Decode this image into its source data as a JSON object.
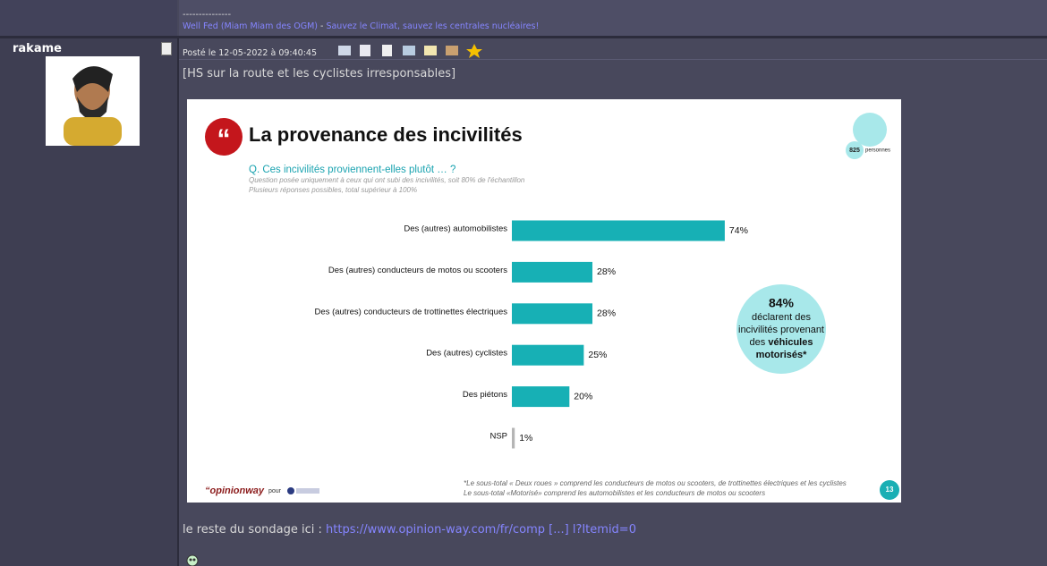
{
  "signature": {
    "separator": "---------------",
    "link1": "Well Fed (Miam Miam des OGM)",
    "dash": " - ",
    "link2": "Sauvez le Climat, sauvez les centrales nucléaires!"
  },
  "post": {
    "author": "rakame",
    "date": "Posté le 12-05-2022 à 09:40:45",
    "subject": "[HS sur la route et les cyclistes irresponsables]",
    "footer_text": "le reste du sondage ici : ",
    "footer_link": "https://www.opinion-way.com/fr/comp [...] l?Itemid=0"
  },
  "chart_data": {
    "type": "bar",
    "orientation": "horizontal",
    "title": "La provenance des incivilités",
    "subtitle": "Q. Ces incivilités proviennent-elles plutôt … ?",
    "notes": [
      "Question posée uniquement à ceux qui ont subi des incivilités, soit 80% de l'échantillon",
      "Plusieurs réponses possibles, total supérieur à 100%"
    ],
    "sample": {
      "count": "825",
      "label": "personnes"
    },
    "categories": [
      "Des (autres) automobilistes",
      "Des (autres) conducteurs de motos ou scooters",
      "Des (autres) conducteurs de trottinettes électriques",
      "Des (autres) cyclistes",
      "Des piétons",
      "NSP"
    ],
    "values": [
      74,
      28,
      28,
      25,
      20,
      1
    ],
    "value_labels": [
      "74%",
      "28%",
      "28%",
      "25%",
      "20%",
      "1%"
    ],
    "colors": [
      "#17b0b5",
      "#17b0b5",
      "#17b0b5",
      "#17b0b5",
      "#17b0b5",
      "#b5b5b5"
    ],
    "callout": {
      "value": "84%",
      "lines": [
        "déclarent des",
        "incivilités provenant"
      ],
      "plain": "des ",
      "bold": [
        "véhicules",
        "motorisés*"
      ]
    },
    "footnotes": [
      "*Le sous-total « Deux roues » comprend les conducteurs de motos ou scooters, de trottinettes électriques et les cyclistes",
      "Le sous-total «Motorisé» comprend les automobilistes et les conducteurs de motos ou scooters"
    ],
    "page": "13",
    "logo": "“opinionway",
    "pour": "pour"
  }
}
